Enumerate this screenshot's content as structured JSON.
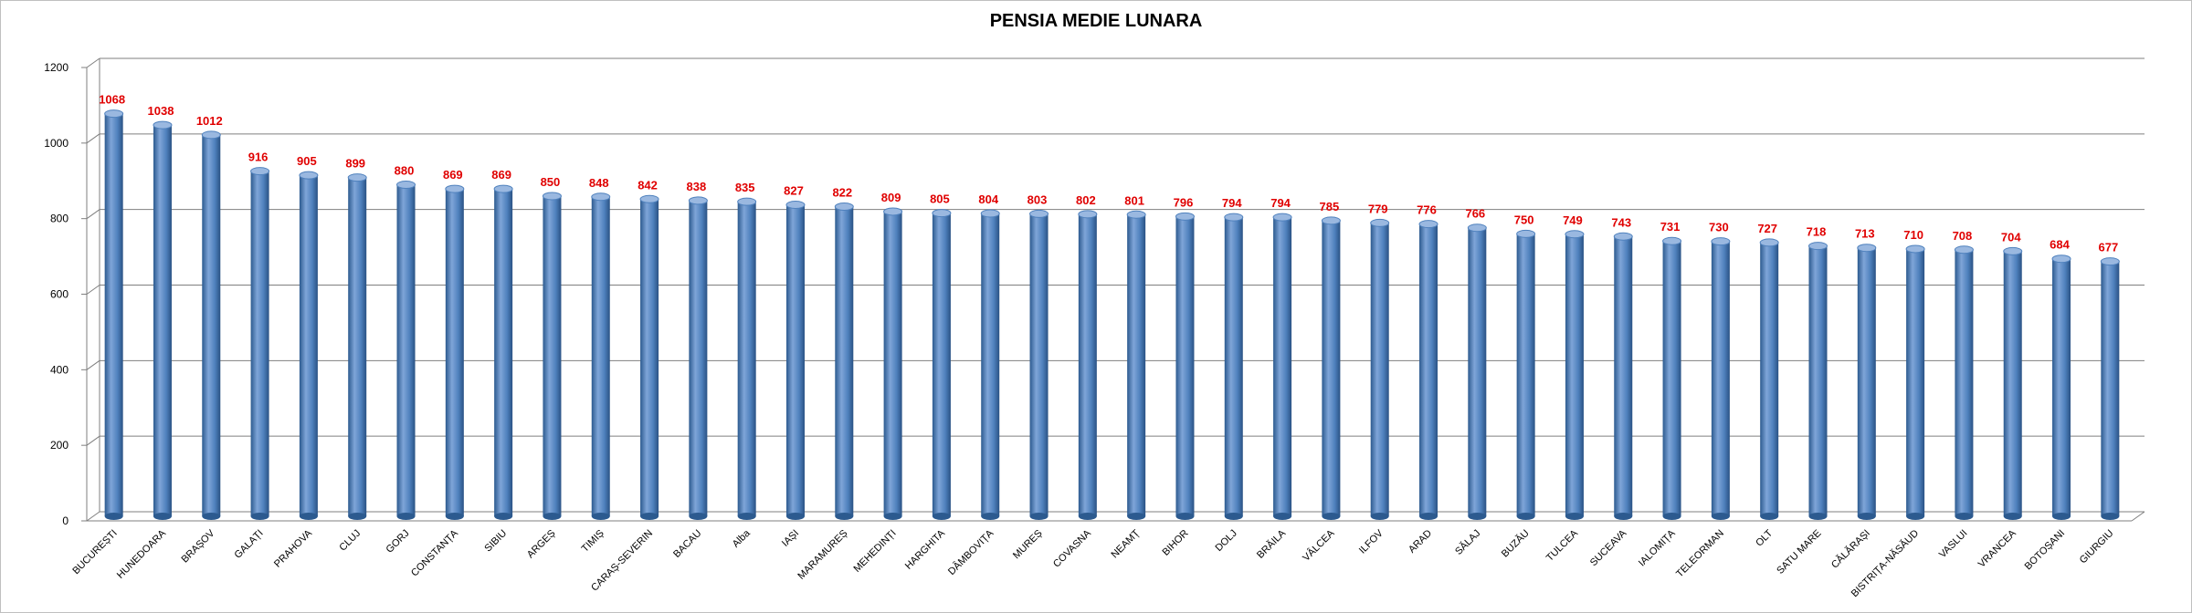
{
  "chart_data": {
    "type": "bar",
    "title": "PENSIA MEDIE LUNARA",
    "xlabel": "",
    "ylabel": "",
    "ylim": [
      0,
      1200
    ],
    "yticks": [
      0,
      200,
      400,
      600,
      800,
      1000,
      1200
    ],
    "grid": true,
    "legend": "none",
    "categories": [
      "BUCUREȘTI",
      "HUNEDOARA",
      "BRAȘOV",
      "GALAȚI",
      "PRAHOVA",
      "CLUJ",
      "GORJ",
      "CONSTANȚA",
      "SIBIU",
      "ARGEȘ",
      "TIMIȘ",
      "CARAȘ-SEVERIN",
      "BACAU",
      "Alba",
      "IAȘI",
      "MARAMUREȘ",
      "MEHEDINȚI",
      "HARGHITA",
      "DÂMBOVIȚA",
      "MUREȘ",
      "COVASNA",
      "NEAMȚ",
      "BIHOR",
      "DOLJ",
      "BRĂILA",
      "VÂLCEA",
      "ILFOV",
      "ARAD",
      "SĂLAJ",
      "BUZĂU",
      "TULCEA",
      "SUCEAVA",
      "IALOMIȚA",
      "TELEORMAN",
      "OLT",
      "SATU MARE",
      "CĂLĂRAȘI",
      "BISTRIȚA-NĂSĂUD",
      "VASLUI",
      "VRANCEA",
      "BOTOȘANI",
      "GIURGIU"
    ],
    "values": [
      1068,
      1038,
      1012,
      916,
      905,
      899,
      880,
      869,
      869,
      850,
      848,
      842,
      838,
      835,
      827,
      822,
      809,
      805,
      804,
      803,
      802,
      801,
      796,
      794,
      794,
      785,
      779,
      776,
      766,
      750,
      749,
      743,
      731,
      730,
      727,
      718,
      713,
      710,
      708,
      704,
      684,
      677
    ],
    "colors": {
      "bar": "#4f81bd",
      "bar_dark": "#2c5a8f",
      "bar_light": "#9ab8e0",
      "label": "#e00000",
      "grid": "#7f7f7f"
    }
  }
}
